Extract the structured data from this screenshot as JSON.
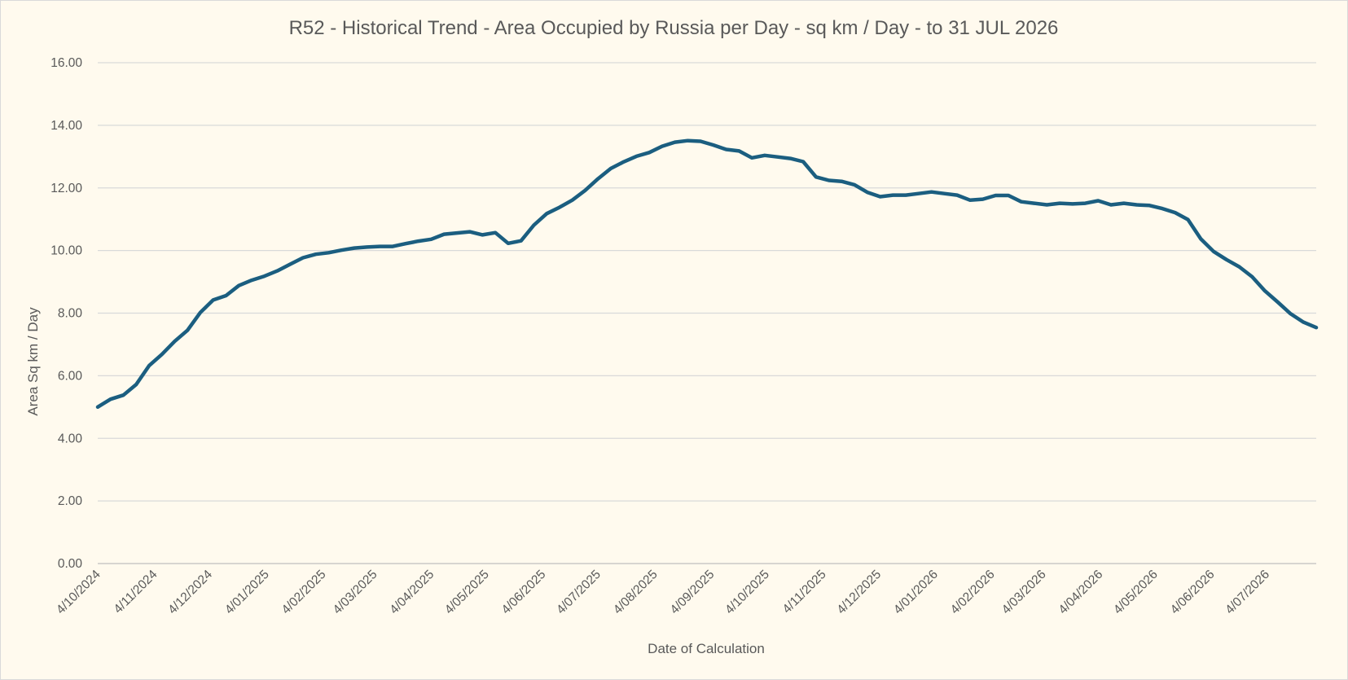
{
  "colors": {
    "background": "#fffaee",
    "series": "#1b5e80",
    "gridline": "#d9d9d9",
    "text": "#595959"
  },
  "chart_data": {
    "type": "line",
    "title": "R52 - Historical Trend - Area Occupied by Russia per Day - sq km / Day - to 31 JUL 2026",
    "xlabel": "Date of Calculation",
    "ylabel": "Area Sq km / Day",
    "ylim": [
      0,
      16
    ],
    "y_ticks": [
      "0.00",
      "2.00",
      "4.00",
      "6.00",
      "8.00",
      "10.00",
      "12.00",
      "14.00",
      "16.00"
    ],
    "x_range": [
      "2024-10-04",
      "2026-07-31"
    ],
    "x_tick_dates": [
      "2024-10-04",
      "2024-11-04",
      "2024-12-04",
      "2025-01-04",
      "2025-02-04",
      "2025-03-04",
      "2025-04-04",
      "2025-05-04",
      "2025-06-04",
      "2025-07-04",
      "2025-08-04",
      "2025-09-04",
      "2025-10-04",
      "2025-11-04",
      "2025-12-04",
      "2026-01-04",
      "2026-02-04",
      "2026-03-04",
      "2026-04-04",
      "2026-05-04",
      "2026-06-04",
      "2026-07-04"
    ],
    "x_tick_labels": [
      "4/10/2024",
      "4/11/2024",
      "4/12/2024",
      "4/01/2025",
      "4/02/2025",
      "4/03/2025",
      "4/04/2025",
      "4/05/2025",
      "4/06/2025",
      "4/07/2025",
      "4/08/2025",
      "4/09/2025",
      "4/10/2025",
      "4/11/2025",
      "4/12/2025",
      "4/01/2026",
      "4/02/2026",
      "4/03/2026",
      "4/04/2026",
      "4/05/2026",
      "4/06/2026",
      "4/07/2026"
    ],
    "grid": true,
    "legend": "none",
    "series": [
      {
        "x": [
          "2024-10-04",
          "2024-10-11",
          "2024-10-18",
          "2024-10-25",
          "2024-11-01",
          "2024-11-08",
          "2024-11-15",
          "2024-11-22",
          "2024-11-29",
          "2024-12-06",
          "2024-12-13",
          "2024-12-20",
          "2024-12-27",
          "2025-01-03",
          "2025-01-10",
          "2025-01-17",
          "2025-01-24",
          "2025-01-31",
          "2025-02-07",
          "2025-02-14",
          "2025-02-21",
          "2025-02-28",
          "2025-03-07",
          "2025-03-14",
          "2025-03-21",
          "2025-03-28",
          "2025-04-04",
          "2025-04-11",
          "2025-04-18",
          "2025-04-25",
          "2025-05-02",
          "2025-05-09",
          "2025-05-16",
          "2025-05-23",
          "2025-05-30",
          "2025-06-06",
          "2025-06-13",
          "2025-06-20",
          "2025-06-27",
          "2025-07-04",
          "2025-07-11",
          "2025-07-18",
          "2025-07-25",
          "2025-08-01",
          "2025-08-08",
          "2025-08-15",
          "2025-08-22",
          "2025-08-29",
          "2025-09-05",
          "2025-09-12",
          "2025-09-19",
          "2025-09-26",
          "2025-10-03",
          "2025-10-10",
          "2025-10-17",
          "2025-10-24",
          "2025-10-31",
          "2025-11-07",
          "2025-11-14",
          "2025-11-21",
          "2025-11-28",
          "2025-12-05",
          "2025-12-12",
          "2025-12-19",
          "2025-12-26",
          "2026-01-02",
          "2026-01-09",
          "2026-01-16",
          "2026-01-23",
          "2026-01-30",
          "2026-02-06",
          "2026-02-13",
          "2026-02-20",
          "2026-02-27",
          "2026-03-06",
          "2026-03-13",
          "2026-03-20",
          "2026-03-27",
          "2026-04-03",
          "2026-04-10",
          "2026-04-17",
          "2026-04-24",
          "2026-05-01",
          "2026-05-08",
          "2026-05-15",
          "2026-05-22",
          "2026-05-29",
          "2026-06-05",
          "2026-06-12",
          "2026-06-19",
          "2026-06-26",
          "2026-07-03",
          "2026-07-10",
          "2026-07-17",
          "2026-07-24",
          "2026-07-31"
        ],
        "values": [
          5.0,
          5.25,
          5.38,
          5.72,
          6.32,
          6.68,
          7.1,
          7.45,
          8.02,
          8.42,
          8.56,
          8.88,
          9.05,
          9.18,
          9.35,
          9.56,
          9.77,
          9.88,
          9.93,
          10.01,
          10.08,
          10.11,
          10.13,
          10.13,
          10.22,
          10.3,
          10.36,
          10.52,
          10.56,
          10.6,
          10.5,
          10.57,
          10.23,
          10.31,
          10.81,
          11.18,
          11.38,
          11.61,
          11.92,
          12.29,
          12.62,
          12.83,
          13.01,
          13.13,
          13.33,
          13.46,
          13.51,
          13.49,
          13.37,
          13.23,
          13.18,
          12.96,
          13.04,
          12.99,
          12.94,
          12.84,
          12.35,
          12.24,
          12.21,
          12.1,
          11.86,
          11.72,
          11.77,
          11.77,
          11.82,
          11.87,
          11.82,
          11.77,
          11.61,
          11.64,
          11.76,
          11.76,
          11.56,
          11.51,
          11.46,
          11.51,
          11.49,
          11.51,
          11.59,
          11.46,
          11.51,
          11.46,
          11.44,
          11.34,
          11.21,
          10.99,
          10.37,
          9.97,
          9.71,
          9.48,
          9.16,
          8.71,
          8.35,
          7.98,
          7.71,
          7.54
        ]
      }
    ]
  }
}
